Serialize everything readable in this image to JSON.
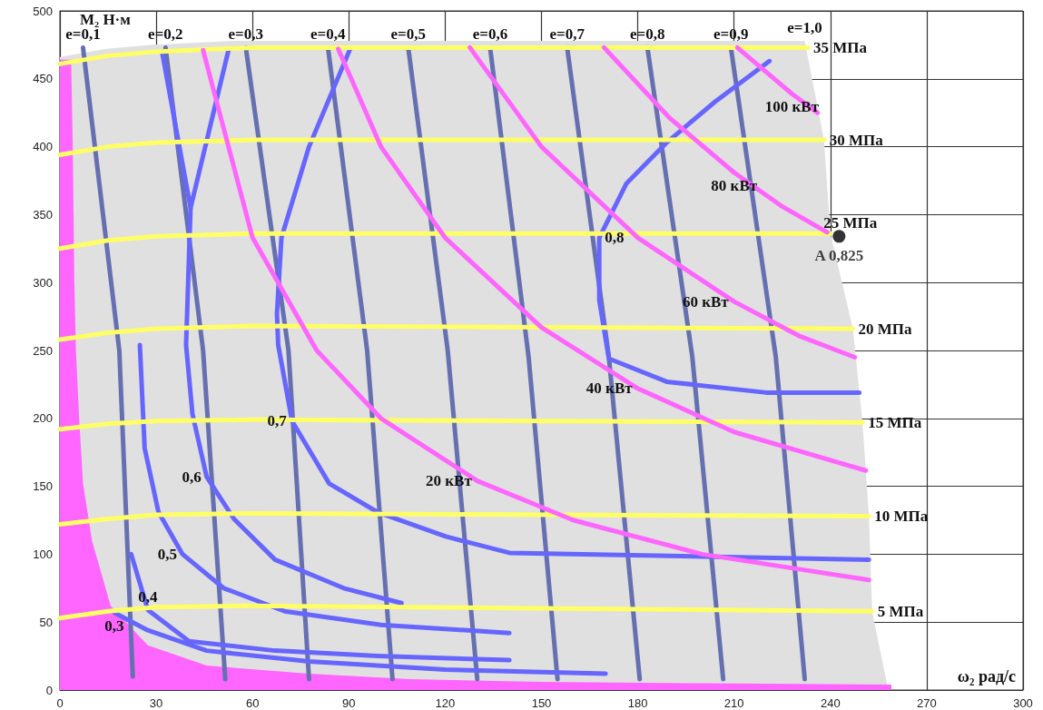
{
  "chart_data": {
    "type": "line",
    "xlabel": "ω₂ рад/с",
    "ylabel": "M₂ Н·м",
    "xlim": [
      0,
      300
    ],
    "ylim": [
      0,
      500
    ],
    "xticks": [
      0,
      30,
      60,
      90,
      120,
      150,
      180,
      210,
      240,
      270,
      300
    ],
    "yticks": [
      0,
      50,
      100,
      150,
      200,
      250,
      300,
      350,
      400,
      450,
      500
    ],
    "grid": true,
    "marker": "none",
    "series": [
      {
        "type": "area",
        "name": "e=1,0",
        "color": "#e0e0e0",
        "x": [
          0,
          14,
          28,
          55,
          232,
          238,
          240,
          247,
          250,
          252,
          253,
          258
        ],
        "values": [
          466,
          472,
          475,
          478,
          478,
          405,
          336,
          266,
          197,
          128,
          58,
          0
        ]
      },
      {
        "type": "area",
        "color": "#ff66ff",
        "x": [
          0,
          3.5,
          4,
          4.5,
          5,
          6,
          7.2,
          10,
          15.8,
          27.4,
          45.7,
          77.6,
          109,
          150,
          200,
          259
        ],
        "values": [
          464,
          464,
          400,
          300,
          250,
          200,
          152,
          110,
          62,
          33,
          18,
          12,
          8,
          6,
          5,
          4
        ]
      },
      {
        "name": "e=0,1",
        "color": "#6670b0",
        "x": [
          7.2,
          18.5,
          22.7
        ],
        "values": [
          473,
          250,
          10
        ]
      },
      {
        "name": "e=0,2",
        "color": "#6670b0",
        "x": [
          32.9,
          44.6,
          51.5
        ],
        "values": [
          473,
          250,
          8
        ]
      },
      {
        "name": "e=0,3",
        "color": "#6670b0",
        "x": [
          57.9,
          71.2,
          77.6
        ],
        "values": [
          473,
          250,
          8
        ]
      },
      {
        "name": "e=0,4",
        "color": "#6670b0",
        "x": [
          83.5,
          95.7,
          103.6
        ],
        "values": [
          473,
          250,
          8
        ]
      },
      {
        "name": "e=0,5",
        "color": "#6670b0",
        "x": [
          108.5,
          120.8,
          130
        ],
        "values": [
          473,
          250,
          8
        ]
      },
      {
        "name": "e=0,6",
        "color": "#6670b0",
        "x": [
          134,
          146,
          155
        ],
        "values": [
          473,
          245,
          8
        ]
      },
      {
        "name": "e=0,7",
        "color": "#6670b0",
        "x": [
          158,
          171,
          180.6
        ],
        "values": [
          473,
          245,
          8
        ]
      },
      {
        "name": "e=0,8",
        "color": "#6670b0",
        "x": [
          183,
          197,
          206.6
        ],
        "values": [
          473,
          245,
          8
        ]
      },
      {
        "name": "e=0,9",
        "color": "#6670b0",
        "x": [
          209,
          223,
          232
        ],
        "values": [
          473,
          245,
          8
        ]
      },
      {
        "color": "#6666ff",
        "x": [
          31.8,
          40.7,
          52.6
        ],
        "values": [
          470,
          355,
          472
        ]
      },
      {
        "name": "0,6",
        "color": "#6666ff",
        "x": [
          40.7,
          39.3,
          41.3,
          45.7,
          54.2,
          67,
          88.4,
          106.4
        ],
        "values": [
          355,
          254,
          203,
          157,
          126,
          96,
          75,
          64
        ]
      },
      {
        "name": "0,7",
        "color": "#6666ff",
        "x": [
          90.4,
          77.6,
          69,
          67.6,
          68,
          72.3,
          83.9,
          98.9,
          120.2,
          140,
          252
        ],
        "values": [
          472,
          400,
          333,
          277,
          254,
          198,
          152,
          131,
          113,
          101,
          96
        ]
      },
      {
        "name": "0,8",
        "color": "#6666ff",
        "x": [
          221,
          204,
          189,
          176.5,
          168,
          168,
          171,
          189,
          220,
          249
        ],
        "values": [
          463,
          433,
          403,
          373,
          333,
          287,
          244,
          227,
          219,
          219
        ]
      },
      {
        "name": "0,5",
        "color": "#6666ff",
        "x": [
          24.9,
          26.4,
          30.7,
          38.2,
          51,
          70,
          100,
          140
        ],
        "values": [
          254,
          178,
          131,
          100,
          75,
          58,
          48,
          42
        ]
      },
      {
        "name": "0,4",
        "color": "#6666ff",
        "x": [
          22.2,
          27.4,
          40.2,
          67,
          99,
          140
        ],
        "values": [
          100,
          59,
          36,
          29,
          25,
          22
        ]
      },
      {
        "name": "0,3",
        "color": "#6666ff",
        "x": [
          16.9,
          27.4,
          45.7,
          77.6,
          120,
          170
        ],
        "values": [
          57,
          44,
          29,
          21,
          15,
          12
        ]
      },
      {
        "name": "35 МПа",
        "color": "#ffff66",
        "x": [
          0,
          15,
          30,
          60,
          233
        ],
        "values": [
          461,
          467,
          470,
          473,
          473
        ]
      },
      {
        "name": "30 МПа",
        "color": "#ffff66",
        "x": [
          0,
          15,
          30,
          60,
          238
        ],
        "values": [
          394,
          400,
          403,
          405,
          405
        ]
      },
      {
        "name": "25 МПа",
        "color": "#ffff66",
        "x": [
          0,
          15,
          30,
          60,
          240
        ],
        "values": [
          325,
          331,
          334,
          336,
          336
        ]
      },
      {
        "name": "20 МПа",
        "color": "#ffff66",
        "x": [
          0,
          15,
          30,
          60,
          247
        ],
        "values": [
          258,
          263,
          266,
          268,
          266
        ]
      },
      {
        "name": "15 МПа",
        "color": "#ffff66",
        "x": [
          0,
          15,
          30,
          60,
          250
        ],
        "values": [
          192,
          196,
          198,
          199,
          197
        ]
      },
      {
        "name": "10 МПа",
        "color": "#ffff66",
        "x": [
          0,
          15,
          30,
          60,
          252
        ],
        "values": [
          122,
          126,
          129,
          130,
          128
        ]
      },
      {
        "name": "5 МПа",
        "color": "#ffff66",
        "x": [
          0,
          15,
          30,
          60,
          253
        ],
        "values": [
          53,
          58,
          61,
          62,
          58
        ]
      },
      {
        "name": "20 кВт",
        "color": "#ff66ff",
        "x": [
          44.6,
          60,
          80,
          100,
          130,
          160,
          200,
          252
        ],
        "values": [
          471,
          333,
          250,
          200,
          154,
          125,
          100,
          81
        ]
      },
      {
        "name": "40 кВт",
        "color": "#ff66ff",
        "x": [
          86.7,
          100,
          120,
          150,
          180,
          210,
          251
        ],
        "values": [
          472,
          400,
          333,
          267,
          222,
          190,
          161.6
        ]
      },
      {
        "name": "60 кВт",
        "color": "#ff66ff",
        "x": [
          127.7,
          150,
          180,
          210,
          230,
          247.6
        ],
        "values": [
          473,
          400,
          333,
          286,
          261,
          245
        ]
      },
      {
        "name": "80 кВт",
        "color": "#ff66ff",
        "x": [
          169.5,
          190,
          210,
          225,
          239
        ],
        "values": [
          473,
          421,
          381,
          356,
          337
        ]
      },
      {
        "name": "100 кВт",
        "color": "#ff66ff",
        "x": [
          211,
          220,
          228,
          236
        ],
        "values": [
          473,
          455,
          439,
          425
        ]
      },
      {
        "type": "scatter",
        "name": "A 0,825",
        "marker": "circle",
        "color": "#000000",
        "x": [
          242.7
        ],
        "values": [
          334
        ]
      }
    ]
  }
}
